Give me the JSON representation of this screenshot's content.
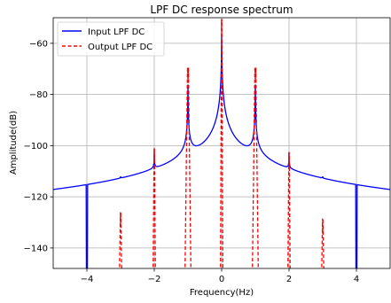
{
  "chart_data": {
    "type": "line",
    "title": "LPF DC response spectrum",
    "xlabel": "Frequency(Hz)",
    "ylabel": "Amplitude(dB)",
    "xlim": [
      -5,
      5
    ],
    "ylim": [
      -148,
      -50
    ],
    "x_ticks": [
      -4,
      -2,
      0,
      2,
      4
    ],
    "y_ticks": [
      -140,
      -120,
      -100,
      -80,
      -60
    ],
    "grid": true,
    "legend_position": "top-left",
    "series": [
      {
        "name": "Input LPF DC",
        "color": "#0000ff",
        "style": "solid",
        "baseline_left": -145,
        "baseline_right": -145.3,
        "peaks": [
          {
            "x": -3,
            "y": -134
          },
          {
            "x": -2,
            "y": -107
          },
          {
            "x": -1,
            "y": -75.5
          },
          {
            "x": 0,
            "y": -56.5
          },
          {
            "x": 1,
            "y": -75.5
          },
          {
            "x": 2,
            "y": -108
          },
          {
            "x": 3,
            "y": -134
          }
        ],
        "dips": [
          {
            "x": -4,
            "y": -148
          },
          {
            "x": 4,
            "y": -148
          }
        ]
      },
      {
        "name": "Output LPF DC",
        "color": "#ff0000",
        "style": "dashed",
        "peaks": [
          {
            "x": -3,
            "y": -132
          },
          {
            "x": -2,
            "y": -107
          },
          {
            "x": -1,
            "y": -75.5
          },
          {
            "x": 0,
            "y": -56.5
          },
          {
            "x": 1,
            "y": -75.5
          },
          {
            "x": 2,
            "y": -108.5
          },
          {
            "x": 3,
            "y": -134.5
          }
        ]
      }
    ]
  }
}
